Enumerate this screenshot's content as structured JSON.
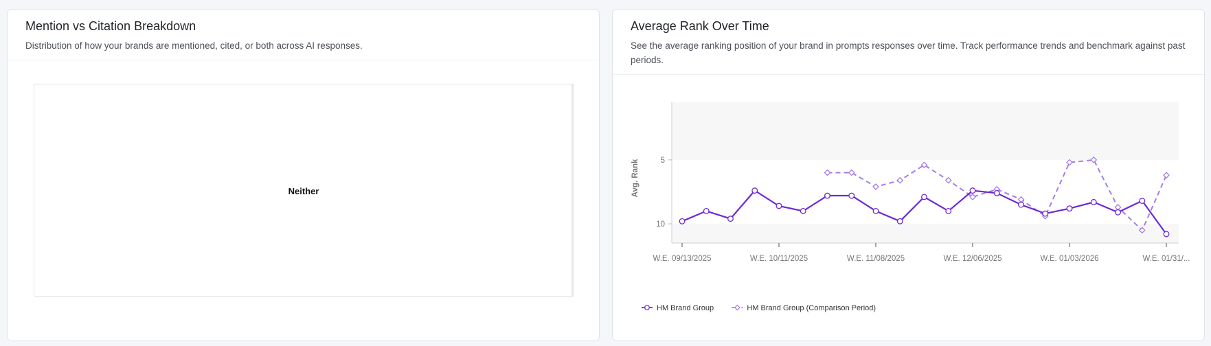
{
  "left_card": {
    "title": "Mention vs Citation Breakdown",
    "description": "Distribution of how your brands are mentioned, cited, or both across AI responses.",
    "segment_label": "Neither"
  },
  "right_card": {
    "title": "Average Rank Over Time",
    "description": "See the average ranking position of your brand in prompts responses over time. Track performance trends and benchmark against past periods."
  },
  "chart_data": {
    "type": "line",
    "ylabel": "Avg. Rank",
    "xlabel": "",
    "y_inverted": true,
    "ylim": [
      11.5,
      0.5
    ],
    "y_ticks": [
      5,
      10
    ],
    "shaded_y_bands": [
      [
        0.5,
        5
      ],
      [
        10,
        11.5
      ]
    ],
    "x_tick_labels": [
      "W.E. 09/13/2025",
      "W.E. 10/11/2025",
      "W.E. 11/08/2025",
      "W.E. 12/06/2025",
      "W.E. 01/03/2026",
      "W.E. 01/31/..."
    ],
    "x_tick_positions": [
      0,
      4,
      8,
      12,
      16,
      20
    ],
    "x_count": 21,
    "legend_position": "bottom-left",
    "series": [
      {
        "name": "HM Brand Group",
        "color": "#6d28d9",
        "dash": false,
        "marker": "circle",
        "values": [
          9.8,
          9.0,
          9.6,
          7.4,
          8.6,
          9.0,
          7.8,
          7.8,
          9.0,
          9.8,
          7.9,
          9.0,
          7.4,
          7.6,
          8.5,
          9.2,
          8.8,
          8.3,
          9.1,
          8.2,
          10.8
        ]
      },
      {
        "name": "HM Brand Group (Comparison Period)",
        "color": "#a47ce6",
        "dash": true,
        "marker": "diamond",
        "values": [
          null,
          null,
          null,
          null,
          null,
          null,
          6.0,
          6.0,
          7.1,
          6.6,
          5.4,
          6.6,
          7.9,
          7.3,
          8.1,
          9.4,
          5.2,
          5.0,
          8.7,
          10.5,
          6.2
        ]
      }
    ]
  }
}
